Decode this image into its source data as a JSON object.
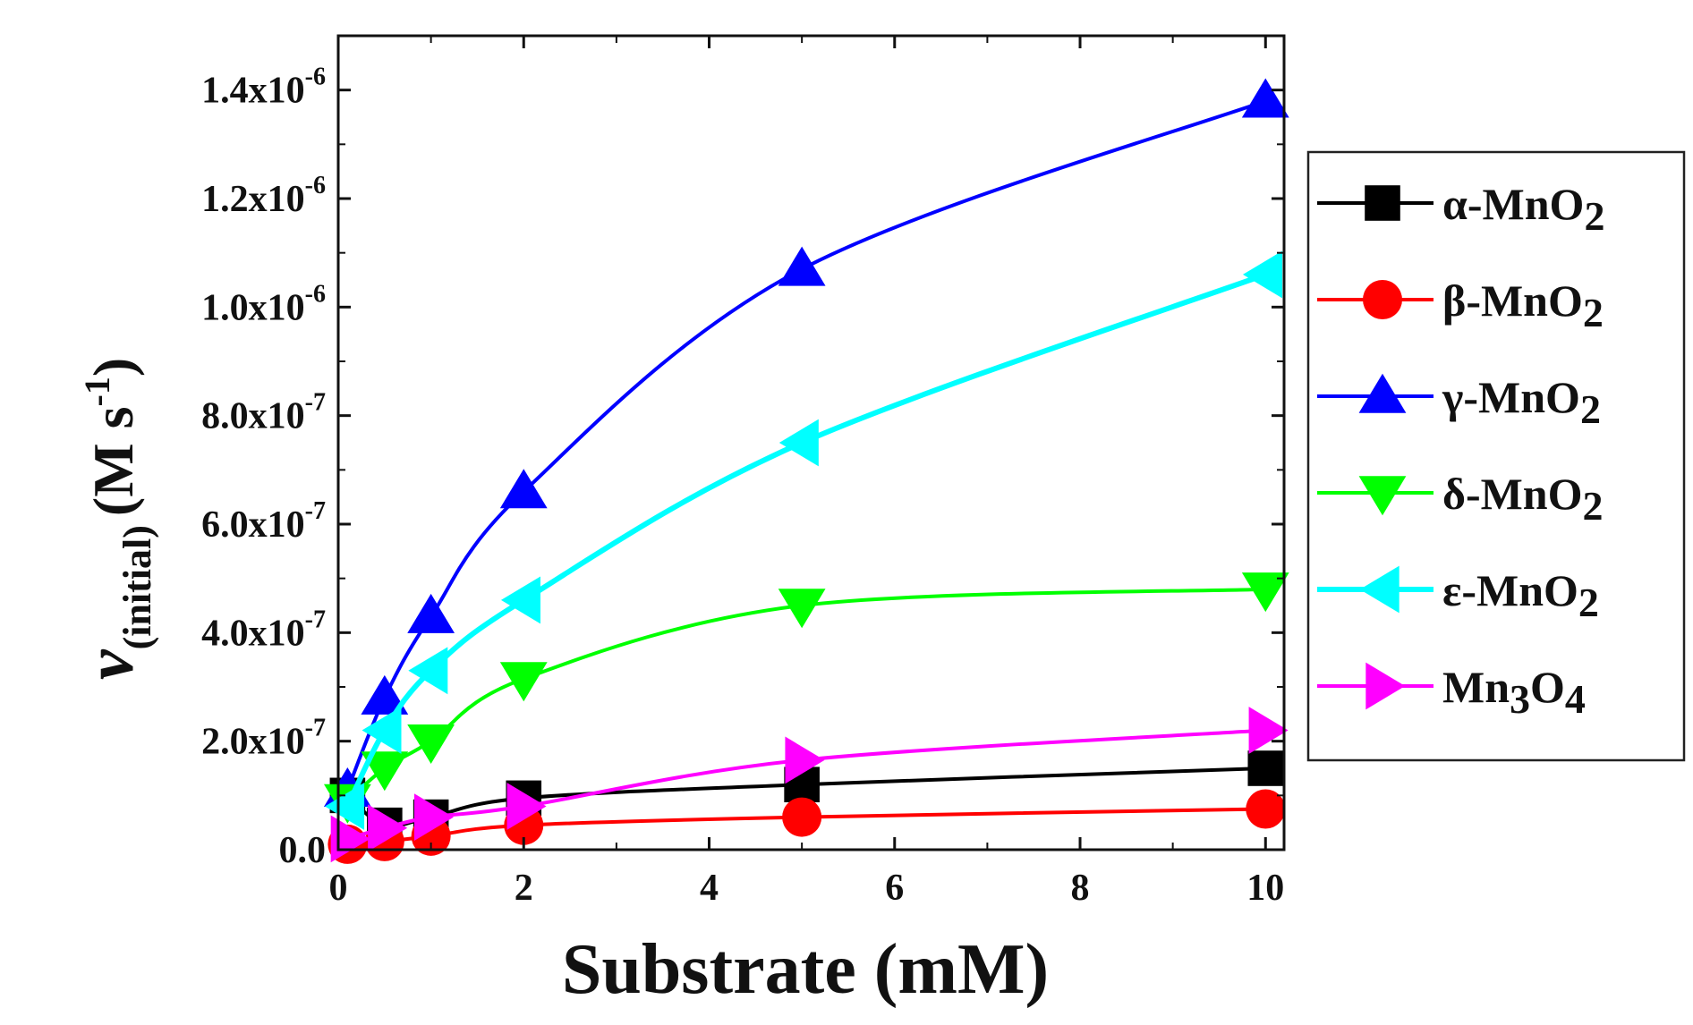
{
  "chart_data": {
    "type": "line",
    "xlabel": "Substrate (mM)",
    "ylabel": {
      "main": "v",
      "subscript": "(initial)",
      "units": "(M s",
      "units_exponent": "-1",
      "units_close": ")"
    },
    "xlim": [
      0,
      10.2
    ],
    "ylim": [
      0,
      1.5e-06
    ],
    "x_ticks": [
      {
        "value": 0,
        "label": "0"
      },
      {
        "value": 2,
        "label": "2"
      },
      {
        "value": 4,
        "label": "4"
      },
      {
        "value": 6,
        "label": "6"
      },
      {
        "value": 8,
        "label": "8"
      },
      {
        "value": 10,
        "label": "10"
      }
    ],
    "y_ticks": [
      {
        "value": 0,
        "mantissa": "0.0",
        "exponent": ""
      },
      {
        "value": 2e-07,
        "mantissa": "2.0x10",
        "exponent": "-7"
      },
      {
        "value": 4e-07,
        "mantissa": "4.0x10",
        "exponent": "-7"
      },
      {
        "value": 6e-07,
        "mantissa": "6.0x10",
        "exponent": "-7"
      },
      {
        "value": 8e-07,
        "mantissa": "8.0x10",
        "exponent": "-7"
      },
      {
        "value": 1e-06,
        "mantissa": "1.0x10",
        "exponent": "-6"
      },
      {
        "value": 1.2e-06,
        "mantissa": "1.2x10",
        "exponent": "-6"
      },
      {
        "value": 1.4e-06,
        "mantissa": "1.4x10",
        "exponent": "-6"
      }
    ],
    "x": [
      0.1,
      0.5,
      1,
      2,
      5,
      10
    ],
    "series": [
      {
        "name": "α-MnO2",
        "prefix": "α-MnO",
        "sub": "2",
        "color": "#000000",
        "marker": "square",
        "values": [
          1e-07,
          4.5e-08,
          6e-08,
          9.5e-08,
          1.2e-07,
          1.5e-07
        ]
      },
      {
        "name": "β-MnO2",
        "prefix": "β-MnO",
        "sub": "2",
        "color": "#ff0000",
        "marker": "circle",
        "values": [
          1e-08,
          1.5e-08,
          2.5e-08,
          4.5e-08,
          6e-08,
          7.5e-08
        ]
      },
      {
        "name": "γ-MnO2",
        "prefix": "γ-MnO",
        "sub": "2",
        "color": "#0000ff",
        "marker": "triangle-up",
        "values": [
          1.1e-07,
          2.8e-07,
          4.3e-07,
          6.6e-07,
          1.07e-06,
          1.38e-06
        ]
      },
      {
        "name": "δ-MnO2",
        "prefix": "δ-MnO",
        "sub": "2",
        "color": "#00ff00",
        "marker": "triangle-down",
        "values": [
          9e-08,
          1.5e-07,
          2e-07,
          3.15e-07,
          4.5e-07,
          4.8e-07
        ]
      },
      {
        "name": "ε-MnO2",
        "prefix": "ε-MnO",
        "sub": "2",
        "color": "#00ffff",
        "marker": "triangle-left",
        "values": [
          8e-08,
          2.2e-07,
          3.3e-07,
          4.6e-07,
          7.5e-07,
          1.06e-06
        ]
      },
      {
        "name": "Mn3O4",
        "prefix": "Mn",
        "sub": "3",
        "mid": "O",
        "sub2": "4",
        "color": "#ff00ff",
        "marker": "triangle-right",
        "values": [
          2e-08,
          4e-08,
          6e-08,
          8e-08,
          1.65e-07,
          2.2e-07
        ]
      }
    ],
    "legend_position": "right"
  }
}
